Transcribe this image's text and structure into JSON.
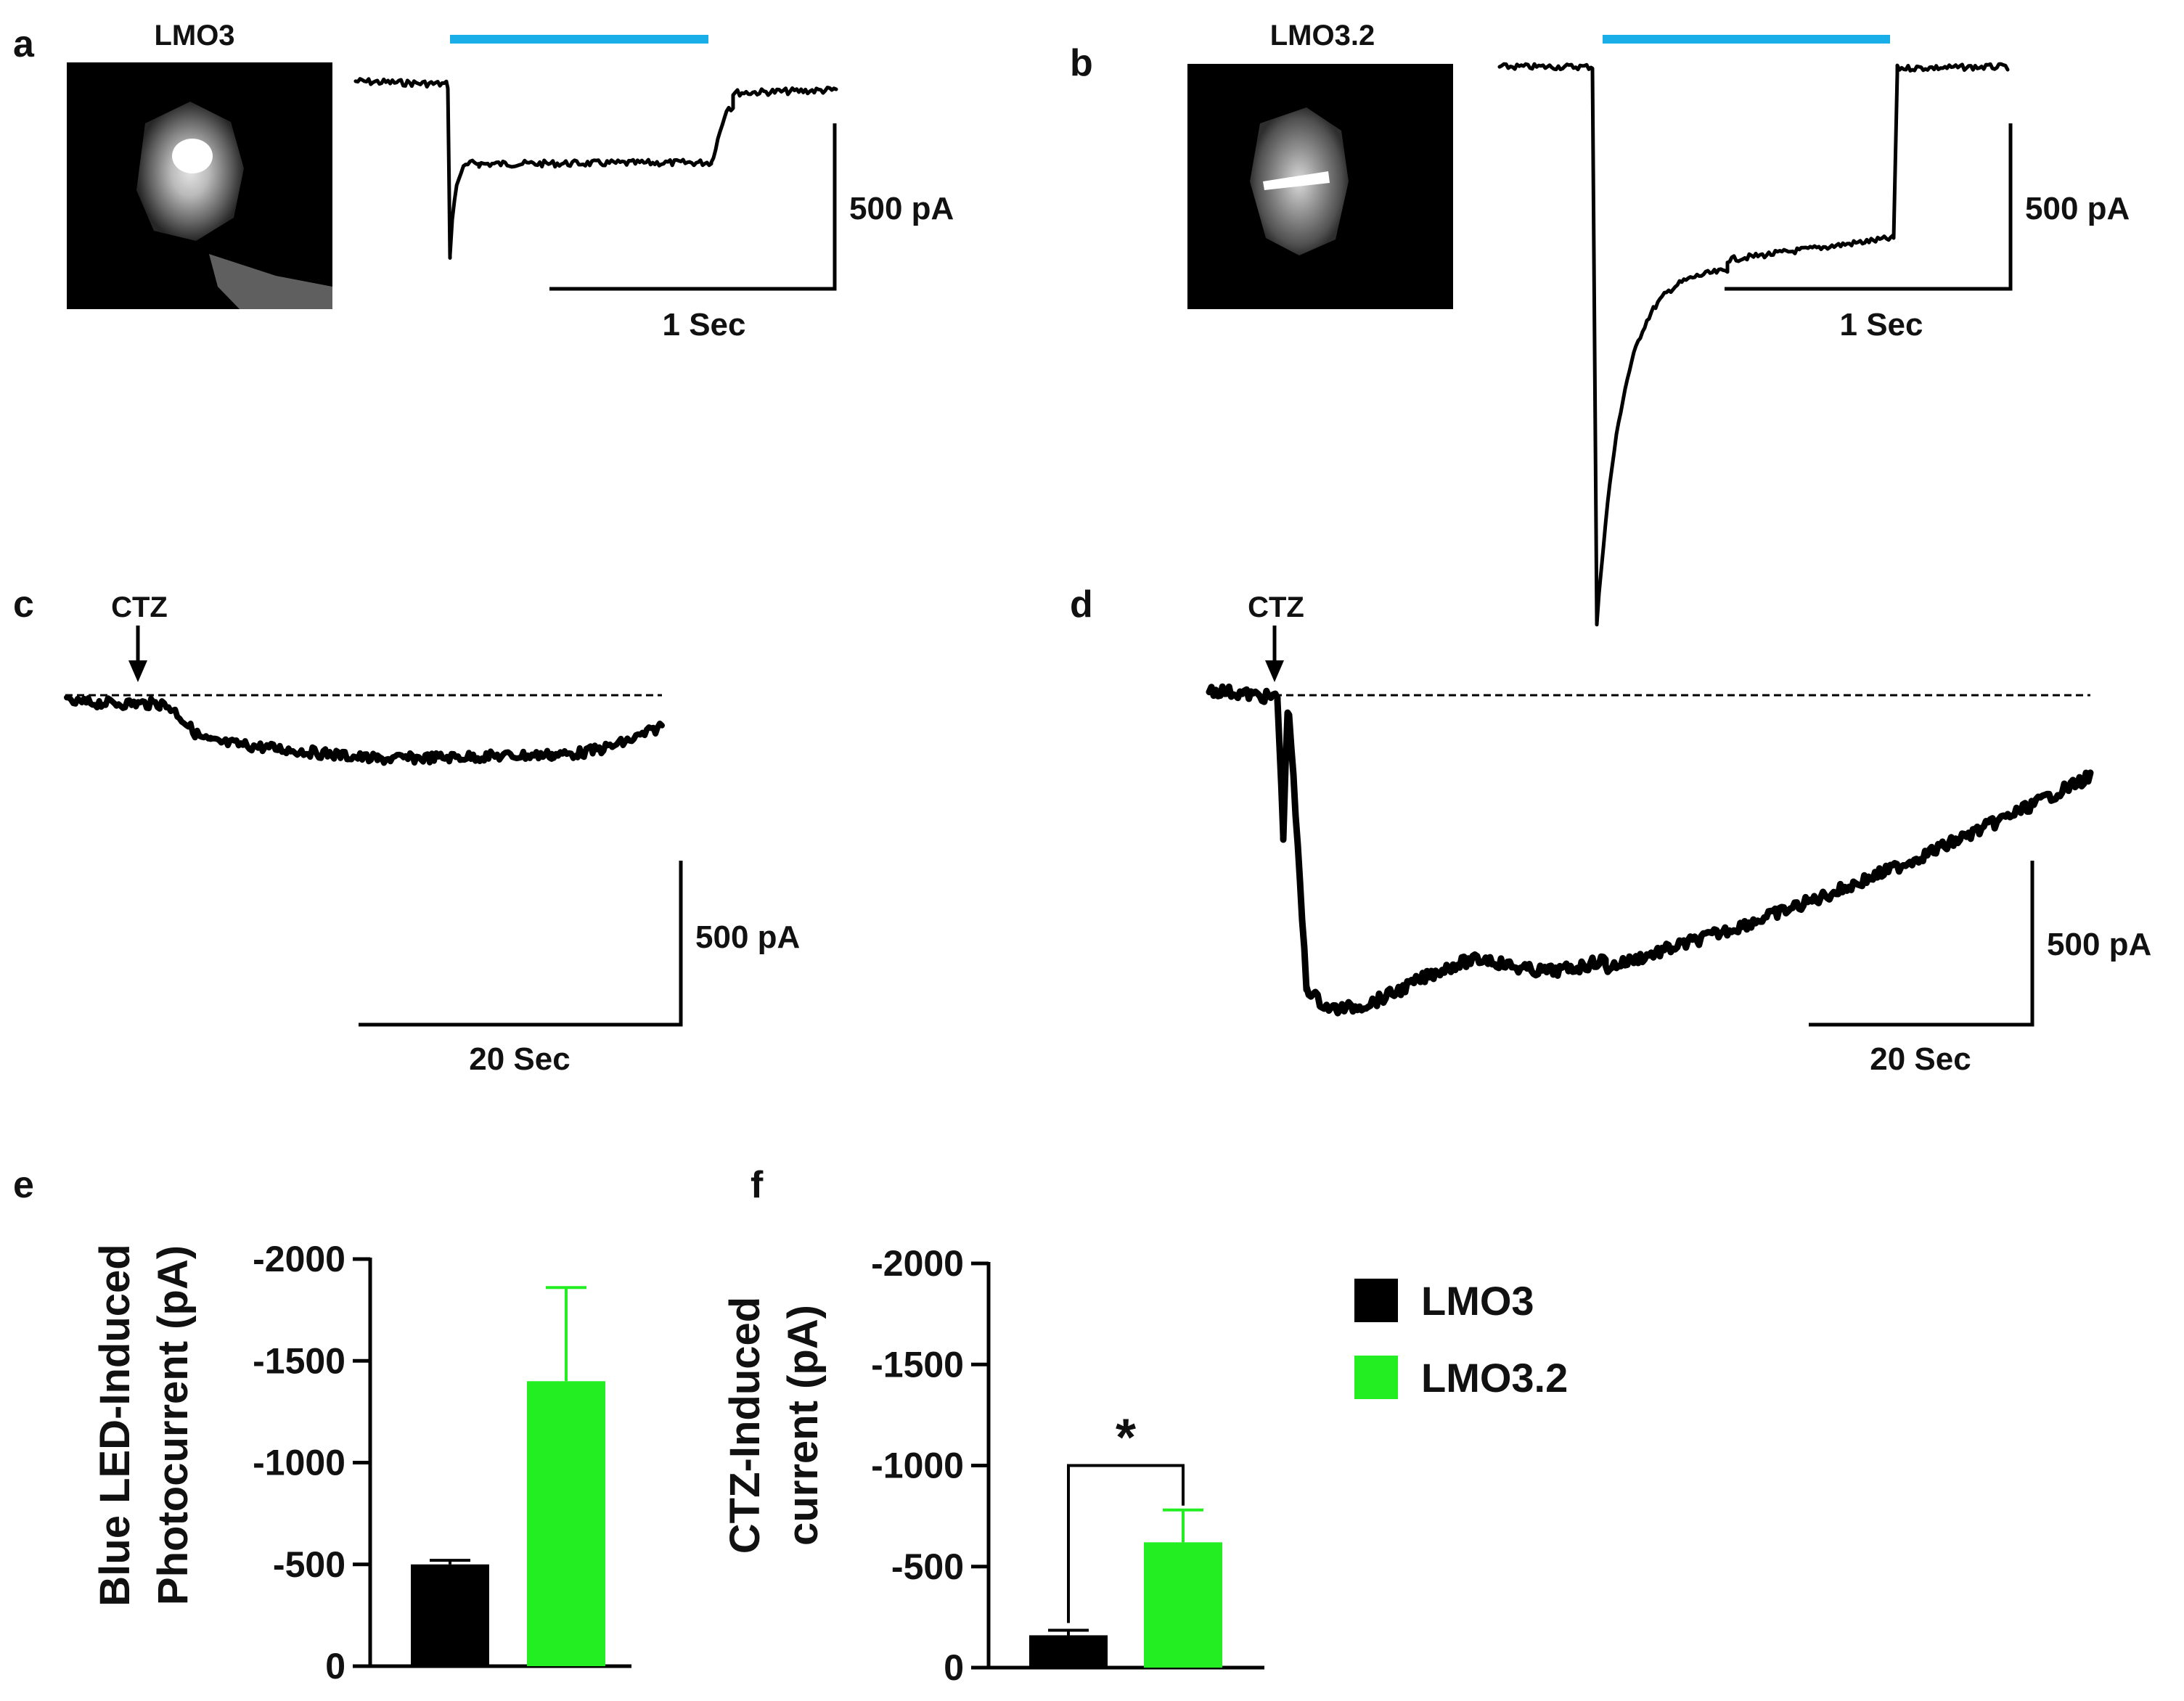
{
  "panels": {
    "a": {
      "letter": "a",
      "cell_label": "LMO3",
      "scale_y": "500 pA",
      "scale_x": "1 Sec"
    },
    "b": {
      "letter": "b",
      "cell_label": "LMO3.2",
      "scale_y": "500 pA",
      "scale_x": "1 Sec"
    },
    "c": {
      "letter": "c",
      "arrow_label": "CTZ",
      "scale_y": "500 pA",
      "scale_x": "20 Sec"
    },
    "d": {
      "letter": "d",
      "arrow_label": "CTZ",
      "scale_y": "500 pA",
      "scale_x": "20 Sec"
    },
    "e": {
      "letter": "e"
    },
    "f": {
      "letter": "f",
      "significance": "*"
    }
  },
  "colors": {
    "light_bar": "#1aaee8",
    "lmo3": "#000000",
    "lmo32": "#22ee22"
  },
  "legend": [
    {
      "label": "LMO3",
      "color": "#000000"
    },
    {
      "label": "LMO3.2",
      "color": "#22ee22"
    }
  ],
  "chart_data": [
    {
      "panel": "e",
      "type": "bar",
      "ylabel_line1": "Blue LED-Induced",
      "ylabel_line2": "Photocurrent (pA)",
      "categories": [
        "LMO3",
        "LMO3.2"
      ],
      "values": [
        -500,
        -1400
      ],
      "errors": [
        20,
        460
      ],
      "ylim": [
        0,
        -2000
      ],
      "yticks": [
        0,
        -500,
        -1000,
        -1500,
        -2000
      ],
      "ytick_labels": [
        "0",
        "-500",
        "-1000",
        "-1500",
        "-2000"
      ]
    },
    {
      "panel": "f",
      "type": "bar",
      "ylabel_line1": "CTZ-Induced",
      "ylabel_line2": "current (pA)",
      "categories": [
        "LMO3",
        "LMO3.2"
      ],
      "values": [
        -160,
        -620
      ],
      "errors": [
        25,
        160
      ],
      "ylim": [
        0,
        -2000
      ],
      "yticks": [
        0,
        -500,
        -1000,
        -1500,
        -2000
      ],
      "ytick_labels": [
        "0",
        "-500",
        "-1000",
        "-1500",
        "-2000"
      ],
      "significance": "*"
    }
  ]
}
